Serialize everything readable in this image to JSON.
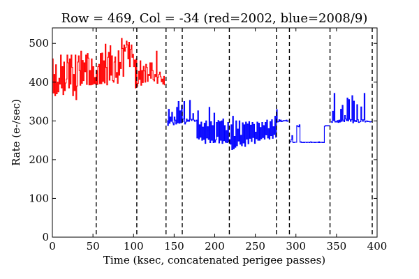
{
  "chart_data": {
    "type": "line",
    "title": "Row = 469, Col = -34 (red=2002, blue=2008/9)",
    "xlabel": "Time (ksec, concatenated perigee passes)",
    "ylabel": "Rate (e-/sec)",
    "xlim": [
      0,
      400
    ],
    "ylim": [
      0,
      540
    ],
    "xticks": [
      0,
      50,
      100,
      150,
      200,
      250,
      300,
      350,
      400
    ],
    "yticks": [
      0,
      100,
      200,
      300,
      400,
      500
    ],
    "grid": false,
    "vlines": [
      54,
      104,
      140,
      160,
      218,
      276,
      292,
      342,
      394
    ],
    "series": [
      {
        "color": "#ff0000",
        "x": [
          0,
          1,
          2,
          3,
          4,
          5,
          6,
          7,
          8,
          9,
          10,
          11,
          12,
          13,
          14,
          15,
          16,
          17,
          18,
          19,
          20,
          21,
          22,
          23,
          24,
          25,
          26,
          27,
          28,
          29,
          30,
          31,
          32,
          33,
          34,
          35,
          36,
          37,
          38,
          39,
          40,
          41,
          42,
          43,
          44,
          45,
          46,
          47,
          48,
          49,
          50,
          51,
          52,
          53,
          54,
          55,
          56,
          57,
          58,
          59,
          60,
          61,
          62,
          63,
          64,
          65,
          66,
          67,
          68,
          69,
          70,
          71,
          72,
          73,
          74,
          75,
          76,
          77,
          78,
          79,
          80,
          81,
          82,
          83,
          84,
          85,
          86,
          87,
          88,
          89,
          90,
          91,
          92,
          93,
          94,
          95,
          96,
          97,
          98,
          99,
          100,
          101,
          102,
          103,
          104,
          105,
          106,
          107,
          108,
          109,
          110,
          111,
          112,
          113,
          114,
          115,
          116,
          117,
          118,
          119,
          120,
          121,
          122,
          123,
          124,
          125,
          126,
          127,
          128,
          129,
          130,
          131,
          132,
          133,
          134,
          135,
          136,
          137,
          138
        ],
        "y": [
          460,
          372,
          420,
          365,
          445,
          370,
          400,
          375,
          410,
          395,
          470,
          385,
          440,
          368,
          452,
          378,
          398,
          408,
          470,
          450,
          385,
          460,
          395,
          470,
          438,
          365,
          420,
          378,
          470,
          355,
          390,
          452,
          468,
          430,
          392,
          480,
          397,
          456,
          404,
          450,
          427,
          470,
          394,
          474,
          462,
          393,
          430,
          393,
          460,
          394,
          440,
          396,
          412,
          395,
          430,
          394,
          440,
          446,
          396,
          474,
          396,
          475,
          402,
          455,
          398,
          498,
          438,
          393,
          464,
          477,
          405,
          494,
          418,
          468,
          404,
          400,
          452,
          465,
          412,
          425,
          397,
          481,
          418,
          451,
          435,
          513,
          487,
          415,
          496,
          480,
          489,
          506,
          496,
          460,
          503,
          440,
          485,
          496,
          464,
          472,
          440,
          457,
          385,
          460,
          389,
          397,
          428,
          407,
          455,
          392,
          430,
          399,
          441,
          429,
          400,
          446,
          438,
          402,
          420,
          417,
          450,
          410,
          450,
          430,
          406,
          403,
          420,
          414,
          480,
          397,
          413,
          420,
          426,
          414,
          401,
          408,
          395,
          415,
          392
        ]
      },
      {
        "color": "#0000ff",
        "x": [
          141,
          142,
          143,
          144,
          145,
          146,
          147,
          148,
          149,
          150,
          151,
          152,
          153,
          154,
          155,
          156,
          157,
          158,
          159,
          160,
          161,
          162,
          163,
          164,
          165,
          166,
          167,
          168,
          169,
          170,
          171,
          172,
          173,
          174,
          175,
          176,
          177,
          178,
          179,
          180,
          181,
          182,
          183,
          184,
          185,
          186,
          187,
          188,
          189,
          190,
          191,
          192,
          193,
          194,
          195,
          196,
          197,
          198,
          199,
          200,
          201,
          202,
          203,
          204,
          205,
          206,
          207,
          208,
          209,
          210,
          211,
          212,
          213,
          214,
          215,
          216,
          217,
          218,
          219,
          220,
          221,
          222,
          223,
          224,
          225,
          226,
          227,
          228,
          229,
          230,
          231,
          232,
          233,
          234,
          235,
          236,
          237,
          238,
          239,
          240,
          241,
          242,
          243,
          244,
          245,
          246,
          247,
          248,
          249,
          250,
          251,
          252,
          253,
          254,
          255,
          256,
          257,
          258,
          259,
          260,
          261,
          262,
          263,
          264,
          265,
          266,
          267,
          268,
          269,
          270,
          271,
          272,
          273,
          274,
          275,
          276,
          277,
          278,
          279,
          280,
          281,
          282,
          283,
          284,
          285,
          286,
          287,
          288,
          289,
          290,
          291
        ],
        "y": [
          300,
          288,
          330,
          294,
          310,
          299,
          322,
          295,
          290,
          310,
          302,
          292,
          335,
          295,
          350,
          294,
          326,
          295,
          340,
          298,
          305,
          350,
          292,
          297,
          305,
          299,
          302,
          299,
          353,
          304,
          301,
          304,
          319,
          302,
          299,
          300,
          302,
          256,
          326,
          253,
          290,
          258,
          297,
          250,
          284,
          252,
          294,
          242,
          300,
          256,
          285,
          252,
          335,
          244,
          298,
          250,
          288,
          244,
          320,
          245,
          251,
          296,
          260,
          301,
          243,
          298,
          250,
          300,
          242,
          305,
          249,
          288,
          245,
          275,
          244,
          296,
          246,
          252,
          240,
          290,
          226,
          312,
          228,
          260,
          232,
          300,
          236,
          279,
          248,
          300,
          240,
          263,
          236,
          295,
          243,
          290,
          234,
          297,
          253,
          292,
          241,
          298,
          255,
          289,
          247,
          296,
          257,
          291,
          242,
          271,
          254,
          297,
          250,
          294,
          250,
          283,
          254,
          296,
          257,
          288,
          253,
          296,
          264,
          302,
          256,
          280,
          253,
          298,
          262,
          303,
          255,
          285,
          265,
          312,
          258,
          329,
          297,
          298,
          303,
          299,
          302,
          298,
          299,
          301,
          300,
          301,
          300,
          302,
          299,
          300,
          301
        ]
      },
      {
        "color": "#0000ff",
        "x": [
          292,
          293,
          294,
          295,
          296,
          297,
          298,
          299,
          300,
          301,
          302,
          303,
          304,
          305,
          306,
          307,
          308,
          309,
          310,
          311,
          312,
          313,
          314,
          315,
          316,
          317,
          318,
          319,
          320,
          321,
          322,
          323,
          324,
          325,
          326,
          327,
          328,
          329,
          330,
          331,
          332,
          333,
          334,
          335,
          336,
          337,
          338,
          339,
          340,
          341,
          342
        ],
        "y": [
          245,
          247,
          252,
          262,
          245,
          244,
          245,
          245,
          245,
          288,
          286,
          285,
          290,
          245,
          246,
          244,
          244,
          245,
          244,
          245,
          245,
          244,
          245,
          245,
          244,
          245,
          246,
          244,
          245,
          245,
          244,
          245,
          244,
          245,
          245,
          244,
          246,
          244,
          245,
          245,
          244,
          245,
          244,
          286,
          288,
          287,
          288,
          287,
          288,
          287,
          288
        ]
      },
      {
        "color": "#0000ff",
        "x": [
          343,
          344,
          345,
          346,
          347,
          348,
          349,
          350,
          351,
          352,
          353,
          354,
          355,
          356,
          357,
          358,
          359,
          360,
          361,
          362,
          363,
          364,
          365,
          366,
          367,
          368,
          369,
          370,
          371,
          372,
          373,
          374,
          375,
          376,
          377,
          378,
          379,
          380,
          381,
          382,
          383,
          384,
          385,
          386,
          387,
          388,
          389,
          390,
          391,
          392,
          393
        ],
        "y": [
          298,
          296,
          325,
          301,
          371,
          297,
          299,
          297,
          301,
          296,
          302,
          297,
          330,
          299,
          340,
          302,
          298,
          314,
          305,
          301,
          359,
          300,
          355,
          304,
          299,
          303,
          365,
          295,
          351,
          299,
          301,
          298,
          342,
          303,
          296,
          297,
          298,
          336,
          303,
          299,
          303,
          371,
          297,
          299,
          300,
          298,
          299,
          298,
          297,
          298,
          297
        ]
      }
    ]
  }
}
